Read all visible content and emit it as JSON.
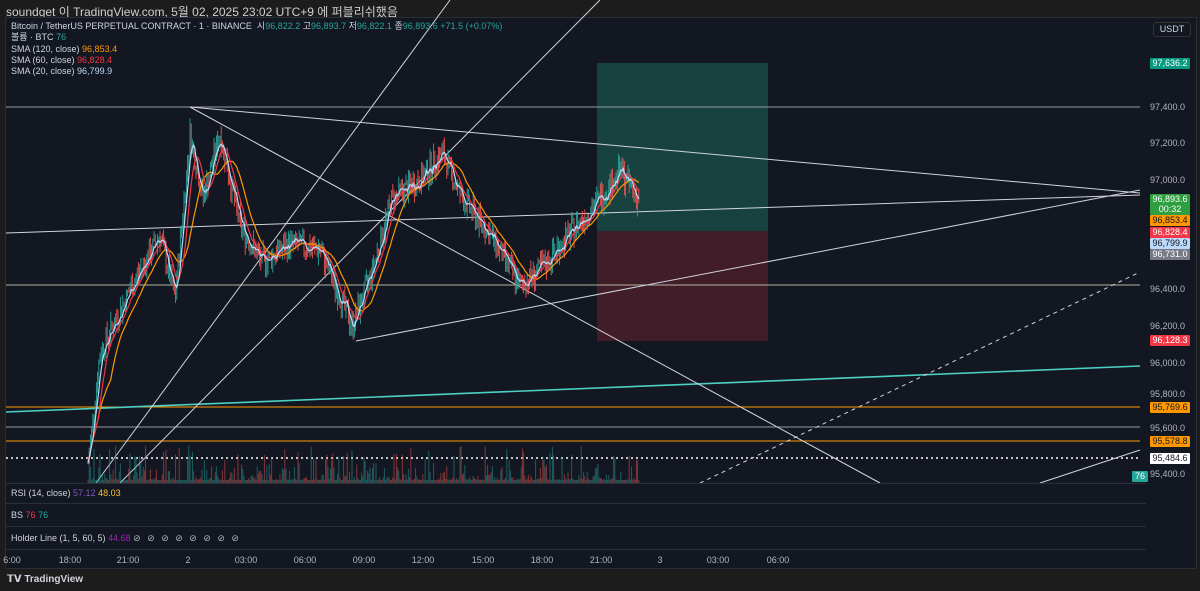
{
  "header": {
    "publish_note": "soundget 이 TradingView.com, 5월 02, 2025 23:02 UTC+9 에 퍼블리쉬했음"
  },
  "legend": {
    "symbol": "Bitcoin / TetherUS PERPETUAL CONTRACT · 1 · BINANCE",
    "open_label": "시",
    "open": "96,822.2",
    "high_label": "고",
    "high": "96,893.7",
    "low_label": "저",
    "low": "96,822.1",
    "close_label": "종",
    "close": "96,893.6",
    "change": "+71.5 (+0.07%)",
    "volume_label": "볼륨 · BTC",
    "volume": "76",
    "sma120_label": "SMA (120, close)",
    "sma120": "96,853.4",
    "sma60_label": "SMA (60, close)",
    "sma60": "96,828.4",
    "sma20_label": "SMA (20, close)",
    "sma20": "96,799.9"
  },
  "price_scale": {
    "currency": "USDT",
    "ticks": [
      "97,400.0",
      "97,200.0",
      "97,000.0",
      "96,400.0",
      "96,200.0",
      "96,000.0",
      "95,800.0",
      "95,600.0",
      "95,400.0"
    ]
  },
  "price_tags": {
    "target": "97,636.2",
    "last": "96,893.6",
    "countdown": "00:32",
    "sma120": "96,853.4",
    "sma60": "96,828.4",
    "sma20": "96,799.9",
    "entry": "96,731.0",
    "stop": "96,128.3",
    "level1": "95,769.6",
    "level2": "95,578.8",
    "level3": "95,484.6",
    "volume": "76"
  },
  "colors": {
    "up": "#26a69a",
    "down": "#ef5350",
    "sma120": "#ff9800",
    "sma60": "#f23645",
    "sma20": "#bbd9fb",
    "target_zone": "#1a4a44",
    "stop_zone": "#4a1f2a"
  },
  "panes": {
    "rsi_label": "RSI (14, close)",
    "rsi_1": "57.12",
    "rsi_2": "48.03",
    "bs_label": "BS",
    "bs_1": "76",
    "bs_2": "76",
    "holder_label": "Holder Line (1, 5, 60, 5)",
    "holder_value": "44.68",
    "holder_na": "⊘ ⊘ ⊘ ⊘ ⊘ ⊘ ⊘ ⊘"
  },
  "time_axis": [
    "6:00",
    "18:00",
    "21:00",
    "2",
    "03:00",
    "06:00",
    "09:00",
    "12:00",
    "15:00",
    "18:00",
    "21:00",
    "3",
    "03:00",
    "06:00"
  ],
  "footer": {
    "brand": "TradingView"
  }
}
